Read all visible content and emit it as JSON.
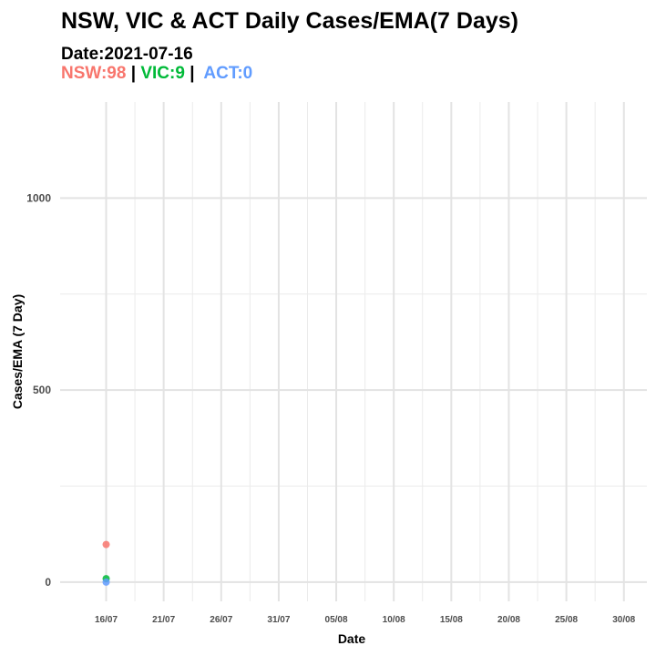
{
  "header": {
    "title": "NSW, VIC & ACT Daily Cases/EMA(7 Days)",
    "subtitle": "Date:2021-07-16",
    "legend": [
      {
        "label": "NSW:98",
        "color": "#f8766d"
      },
      {
        "label": "VIC:9",
        "color": "#00ba38"
      },
      {
        "label": "ACT:0",
        "color": "#619cff"
      }
    ],
    "separator": "|"
  },
  "chart_data": {
    "type": "scatter",
    "title": "NSW, VIC & ACT Daily Cases/EMA(7 Days)",
    "subtitle": "Date:2021-07-16",
    "xlabel": "Date",
    "ylabel": "Cases/EMA (7 Day)",
    "x_ticks": [
      "2021-07-16",
      "2021-07-21",
      "2021-07-26",
      "2021-07-31",
      "2021-08-05",
      "2021-08-10",
      "2021-08-15",
      "2021-08-20",
      "2021-08-25",
      "2021-08-30"
    ],
    "x_tick_labels": [
      "16/07",
      "21/07",
      "26/07",
      "31/07",
      "05/08",
      "10/08",
      "15/08",
      "20/08",
      "25/08",
      "30/08"
    ],
    "x_range": [
      "2021-07-12",
      "2021-09-01"
    ],
    "y_ticks": [
      0,
      500,
      1000
    ],
    "ylim": [
      -50,
      1250
    ],
    "grid": true,
    "series": [
      {
        "name": "NSW",
        "color": "#f8766d",
        "points": [
          {
            "x": "2021-07-16",
            "y": 98
          }
        ]
      },
      {
        "name": "VIC",
        "color": "#00ba38",
        "points": [
          {
            "x": "2021-07-16",
            "y": 9
          }
        ]
      },
      {
        "name": "ACT",
        "color": "#619cff",
        "points": [
          {
            "x": "2021-07-16",
            "y": 0
          }
        ]
      }
    ]
  }
}
